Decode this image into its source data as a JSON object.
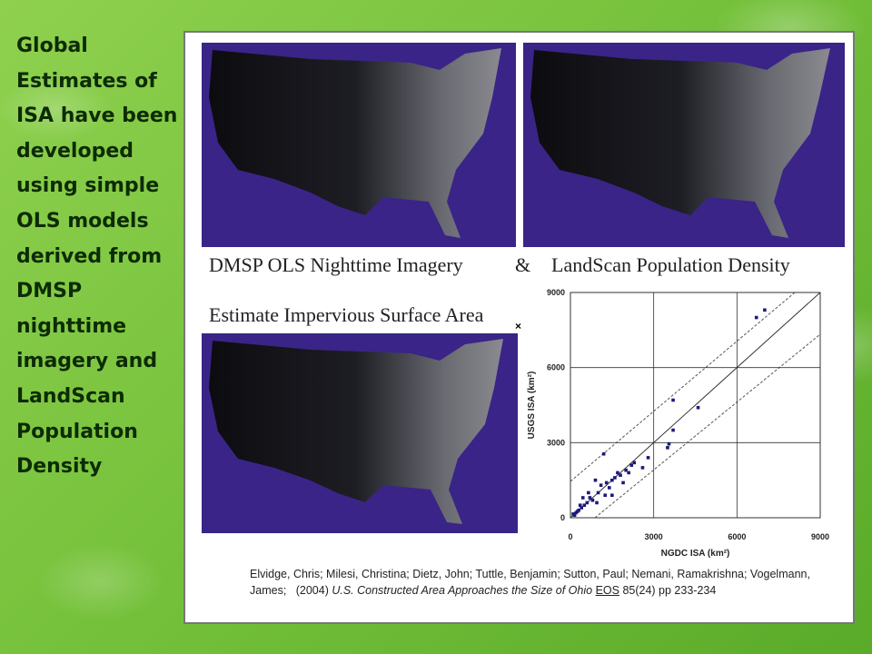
{
  "slide": {
    "text": "Global Estimates of ISA have been developed using simple OLS models derived from DMSP nighttime imagery and LandScan Population Density"
  },
  "figure": {
    "caption_left": "DMSP OLS Nighttime Imagery",
    "ampersand": "&",
    "caption_right": "LandScan Population Density",
    "caption_mid": "Estimate Impervious Surface Area",
    "citation": {
      "authors": "Elvidge, Chris; Milesi, Christina; Dietz, John; Tuttle, Benjamin; Sutton, Paul; Nemani, Ramakrishna; Vogelmann, James;",
      "year": "(2004)",
      "title": "U.S. Constructed Area Approaches the Size of Ohio",
      "journal": "EOS",
      "issue": "85(24) pp 233-234"
    }
  },
  "chart_data": {
    "type": "scatter",
    "x_label": "NGDC ISA (km²)",
    "y_label": "USGS ISA (km²)",
    "color": "#1a1a7a",
    "xlim": [
      0,
      9000
    ],
    "ylim": [
      0,
      9000
    ],
    "xticks": [
      0,
      3000,
      6000,
      9000
    ],
    "yticks": [
      0,
      3000,
      6000,
      9000
    ],
    "grid": true,
    "x": [
      7000,
      6700,
      3700,
      4600,
      3700,
      3500,
      3550,
      1200,
      2300,
      2600,
      2800,
      2200,
      2000,
      1800,
      1600,
      1500,
      1400,
      1300,
      1100,
      1000,
      900,
      800,
      700,
      600,
      500,
      400,
      300,
      200,
      150,
      100,
      1700,
      1900,
      2100,
      1250,
      950,
      650,
      450,
      350,
      250,
      1500
    ],
    "y": [
      8300,
      8000,
      4700,
      4400,
      3500,
      2800,
      2950,
      2550,
      2200,
      2000,
      2400,
      2100,
      1900,
      1700,
      1600,
      1500,
      1200,
      1400,
      1300,
      1000,
      1500,
      700,
      800,
      600,
      500,
      400,
      300,
      200,
      100,
      150,
      1800,
      1400,
      1800,
      900,
      600,
      1000,
      800,
      500,
      250,
      900
    ]
  }
}
